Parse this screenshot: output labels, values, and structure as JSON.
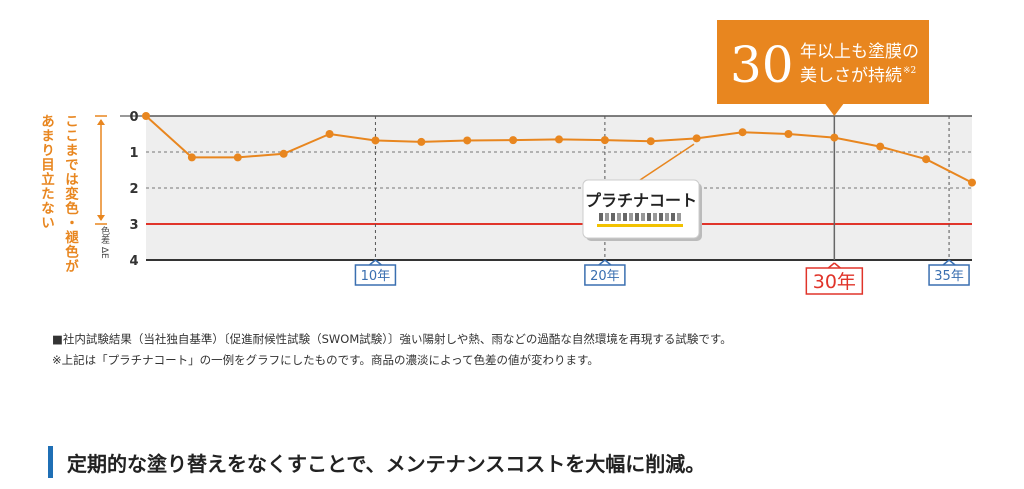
{
  "chart_data": {
    "type": "line",
    "series": [
      {
        "x": [
          0,
          2,
          4,
          6,
          8,
          10,
          12,
          14,
          16,
          18,
          20,
          22,
          24,
          26,
          28,
          30,
          32,
          34,
          36
        ],
        "values": [
          0,
          1.15,
          1.15,
          1.05,
          0.5,
          0.68,
          0.72,
          0.68,
          0.67,
          0.65,
          0.67,
          0.7,
          0.62,
          0.45,
          0.5,
          0.6,
          0.85,
          1.2,
          1.85
        ]
      }
    ],
    "y_ticks": [
      "0",
      "1",
      "2",
      "3",
      "4"
    ],
    "ylim": [
      0,
      4
    ],
    "y_inverted": true,
    "x_ticks": [
      {
        "value": 10,
        "label": "10年",
        "highlight": false
      },
      {
        "value": 20,
        "label": "20年",
        "highlight": false
      },
      {
        "value": 30,
        "label": "30年",
        "highlight": true
      },
      {
        "value": 35,
        "label": "35年",
        "highlight": false
      }
    ],
    "xlim": [
      0,
      36
    ],
    "threshold": {
      "value": 3,
      "color": "#e0342a"
    },
    "grid": true,
    "y_axis_note": [
      "ここまでは変色・褪色が",
      "あまり目立たない"
    ],
    "y_unit_label": "色差",
    "y_unit_symbol": "ΔE",
    "callout": {
      "number": "30",
      "line1": "年以上も塗膜の",
      "line2": "美しさが持続",
      "sup": "※2"
    },
    "product_label": "プラチナコート",
    "colors": {
      "line": "#e8861f",
      "accent": "#e8861f",
      "callout": "#e8861f",
      "highlight": "#e0342a",
      "tick_blue": "#3a6fb0"
    }
  },
  "notes": {
    "line1": "■社内試験結果（当社独自基準）〔促進耐候性試験（SWOM試験）〕強い陽射しや熱、雨などの過酷な自然環境を再現する試験です。",
    "line2": "※上記は「プラチナコート」の一例をグラフにしたものです。商品の濃淡によって色差の値が変わります。"
  },
  "heading": "定期的な塗り替えをなくすことで、メンテナンスコストを大幅に削減。"
}
